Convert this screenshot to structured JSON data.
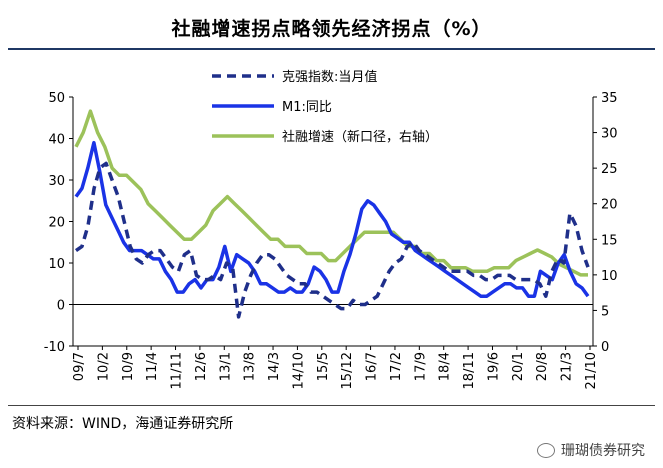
{
  "title": "社融增速拐点略领先经济拐点（%）",
  "source": "资料来源：WIND，海通证券研究所",
  "watermark": "珊瑚债券研究",
  "chart_data": {
    "type": "line",
    "x_tick_labels": [
      "09/7",
      "10/2",
      "10/9",
      "11/4",
      "11/11",
      "12/6",
      "13/1",
      "13/8",
      "14/3",
      "14/10",
      "15/5",
      "15/12",
      "16/7",
      "17/2",
      "17/9",
      "18/4",
      "18/11",
      "19/6",
      "20/1",
      "20/8",
      "21/3",
      "21/10"
    ],
    "y_left": {
      "ticks": [
        "-10",
        "0",
        "10",
        "20",
        "30",
        "40",
        "50"
      ],
      "ylim": [
        -10,
        50
      ]
    },
    "y_right": {
      "ticks": [
        "0",
        "5",
        "10",
        "15",
        "20",
        "25",
        "30",
        "35"
      ],
      "ylim": [
        0,
        35
      ]
    },
    "colors": {
      "ppi": "#1f2f8a",
      "m1": "#1a33e6",
      "tsf": "#9cc25a"
    },
    "series": [
      {
        "name": "克强指数:当月值",
        "axis": "left",
        "style": "dashed",
        "values": [
          13,
          14,
          19,
          28,
          33,
          34,
          30,
          26,
          20,
          14,
          11,
          10,
          12,
          13,
          13,
          11,
          9,
          8,
          12,
          13,
          7,
          6,
          6,
          7,
          6,
          10,
          9,
          -3,
          3,
          7,
          10,
          12,
          12,
          11,
          9,
          7,
          6,
          5,
          5,
          3,
          3,
          2,
          1,
          0,
          -1,
          -1,
          1,
          0,
          0,
          1,
          2,
          5,
          8,
          10,
          11,
          14,
          15,
          13,
          12,
          11,
          10,
          9,
          8,
          8,
          8,
          8,
          7,
          7,
          6,
          6,
          7,
          7,
          7,
          6,
          6,
          6,
          6,
          5,
          2,
          8,
          11,
          10,
          22,
          19,
          13,
          9
        ]
      },
      {
        "name": "M1:同比",
        "axis": "left",
        "style": "solid",
        "values": [
          26,
          28,
          33,
          39,
          32,
          24,
          21,
          18,
          15,
          13,
          13,
          13,
          12,
          11,
          11,
          8,
          6,
          3,
          3,
          5,
          6,
          4,
          6,
          6,
          9,
          14,
          8,
          12,
          11,
          10,
          8,
          5,
          5,
          4,
          3,
          3,
          4,
          3,
          3,
          5,
          9,
          8,
          6,
          3,
          3,
          8,
          12,
          17,
          23,
          25,
          24,
          22,
          20,
          17,
          16,
          15,
          15,
          13,
          12,
          11,
          10,
          9,
          8,
          7,
          6,
          5,
          4,
          3,
          2,
          2,
          3,
          4,
          5,
          5,
          4,
          4,
          2,
          2,
          8,
          7,
          6,
          10,
          12,
          8,
          5,
          4,
          2
        ]
      },
      {
        "name": "社融增速（新口径，右轴）",
        "axis": "right",
        "style": "solid",
        "values": [
          28,
          30,
          33,
          30,
          28,
          25,
          24,
          24,
          23,
          22,
          20,
          19,
          18,
          17,
          16,
          15,
          15,
          16,
          17,
          19,
          20,
          21,
          20,
          19,
          18,
          17,
          16,
          15,
          15,
          14,
          14,
          14,
          13,
          13,
          13,
          12,
          12,
          13,
          14,
          15,
          16,
          16,
          16,
          16,
          16,
          15,
          14,
          14,
          13,
          13,
          12,
          12,
          11,
          11,
          11,
          10.5,
          10.5,
          10.5,
          11,
          11,
          11,
          12,
          12.5,
          13,
          13.5,
          13,
          12.5,
          11.5,
          11,
          10.5,
          10,
          10
        ]
      }
    ]
  }
}
